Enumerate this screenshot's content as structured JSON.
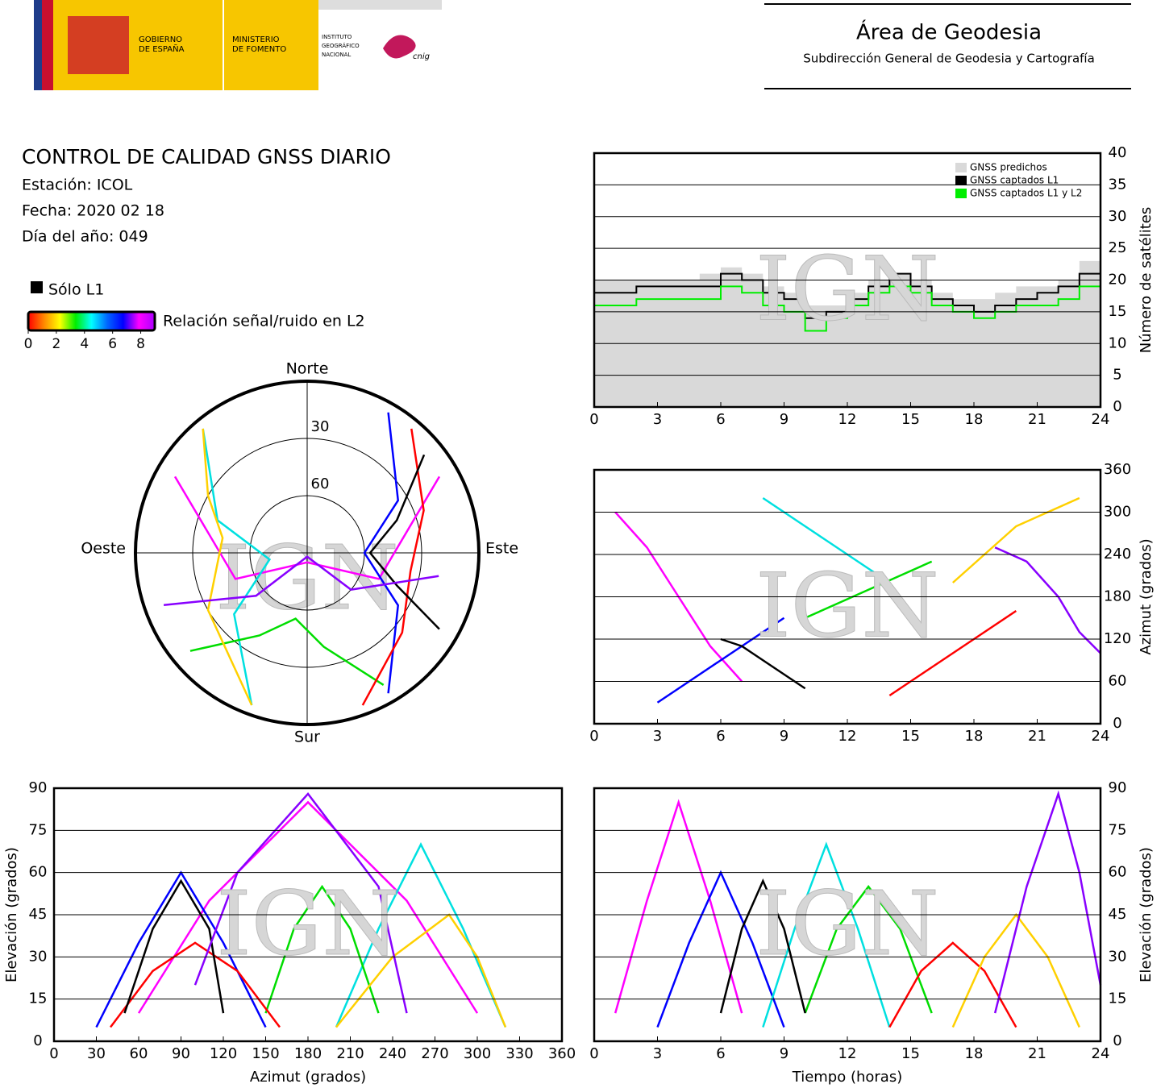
{
  "header": {
    "gobierno": [
      "GOBIERNO",
      "DE ESPAÑA"
    ],
    "ministerio": [
      "MINISTERIO",
      "DE FOMENTO"
    ],
    "instituto": [
      "INSTITUTO",
      "GEOGRÁFICO",
      "NACIONAL"
    ],
    "cnig": "cnig",
    "area": "Área de Geodesia",
    "subdireccion": "Subdirección General de Geodesia y Cartografía"
  },
  "info": {
    "title": "CONTROL DE CALIDAD GNSS DIARIO",
    "station": "Estación: ICOL",
    "date": "Fecha: 2020 02 18",
    "doy": "Día del año: 049"
  },
  "legend": {
    "solo": "Sólo L1",
    "solo_color": "#000000",
    "snr_label": "Relación señal/ruido en L2",
    "colorbar_lim": [
      0,
      9
    ],
    "colorbar_ticks": [
      0,
      2,
      4,
      6,
      8
    ],
    "colors": [
      "#ff0000",
      "#ff8800",
      "#ffff00",
      "#00ee00",
      "#00ffff",
      "#0066ff",
      "#0000ff",
      "#ff00ff",
      "#aa00ff"
    ]
  },
  "watermark": "IGN",
  "chart_data": [
    {
      "type": "step",
      "xlim": [
        0,
        24
      ],
      "xticks": [
        0,
        3,
        6,
        9,
        12,
        15,
        18,
        21,
        24
      ],
      "ylim": [
        0,
        40
      ],
      "yticks": [
        0,
        5,
        10,
        15,
        20,
        25,
        30,
        35,
        40
      ],
      "grid": true,
      "yaxis_side": "right",
      "ylabel": "Número de satélites",
      "legend": "upper right",
      "x": [
        0,
        1,
        2,
        3,
        4,
        5,
        6,
        7,
        8,
        9,
        10,
        11,
        12,
        13,
        14,
        15,
        16,
        17,
        18,
        19,
        20,
        21,
        22,
        23,
        24
      ],
      "series": [
        {
          "name": "GNSS predichos",
          "color": "#d9d9d9",
          "fill": true,
          "values": [
            20,
            20,
            20,
            20,
            20,
            21,
            22,
            21,
            19,
            18,
            16,
            16,
            18,
            20,
            21,
            20,
            18,
            17,
            17,
            18,
            19,
            19,
            20,
            23,
            20
          ]
        },
        {
          "name": "GNSS captados L1",
          "color": "#000000",
          "fill": false,
          "values": [
            18,
            18,
            19,
            19,
            19,
            19,
            21,
            20,
            18,
            17,
            14,
            15,
            17,
            19,
            21,
            19,
            17,
            16,
            15,
            16,
            17,
            18,
            19,
            21,
            19
          ]
        },
        {
          "name": "GNSS captados L1 y L2",
          "color": "#00ee00",
          "fill": false,
          "values": [
            16,
            16,
            17,
            17,
            17,
            17,
            19,
            18,
            16,
            15,
            12,
            14,
            16,
            18,
            19,
            18,
            16,
            15,
            14,
            15,
            16,
            16,
            17,
            19,
            17
          ]
        }
      ]
    },
    {
      "type": "polar",
      "directions": [
        "Norte",
        "Este",
        "Sur",
        "Oeste"
      ],
      "rlim": [
        0,
        90
      ],
      "rticks": [
        30,
        60
      ],
      "series": [
        {
          "color": "#ff00ff",
          "x": [
            300,
            250,
            180,
            110,
            60
          ],
          "values": [
            10,
            50,
            85,
            50,
            10
          ]
        },
        {
          "color": "#0000ff",
          "x": [
            30,
            60,
            90,
            120,
            150
          ],
          "values": [
            5,
            35,
            60,
            35,
            5
          ]
        },
        {
          "color": "#00e0e0",
          "x": [
            320,
            290,
            260,
            230,
            200
          ],
          "values": [
            5,
            40,
            70,
            40,
            5
          ]
        },
        {
          "color": "#00dd00",
          "x": [
            150,
            170,
            190,
            210,
            230
          ],
          "values": [
            10,
            40,
            55,
            40,
            10
          ]
        },
        {
          "color": "#ff0000",
          "x": [
            40,
            70,
            100,
            130,
            160
          ],
          "values": [
            5,
            25,
            35,
            25,
            5
          ]
        },
        {
          "color": "#000000",
          "x": [
            120,
            110,
            90,
            70,
            50
          ],
          "values": [
            10,
            40,
            57,
            40,
            10
          ]
        },
        {
          "color": "#ffd000",
          "x": [
            200,
            240,
            280,
            300,
            320
          ],
          "values": [
            5,
            30,
            45,
            30,
            5
          ]
        },
        {
          "color": "#8800ff",
          "x": [
            250,
            230,
            180,
            130,
            100
          ],
          "values": [
            10,
            55,
            88,
            60,
            20
          ]
        }
      ]
    },
    {
      "type": "line",
      "xlim": [
        0,
        24
      ],
      "xticks": [
        0,
        3,
        6,
        9,
        12,
        15,
        18,
        21,
        24
      ],
      "ylim": [
        0,
        360
      ],
      "yticks": [
        0,
        60,
        120,
        180,
        240,
        300,
        360
      ],
      "grid": true,
      "yaxis_side": "right",
      "ylabel": "Azimut (grados)",
      "series": [
        {
          "color": "#ff00ff",
          "x": [
            1,
            2.5,
            4,
            5.5,
            7
          ],
          "values": [
            300,
            250,
            180,
            110,
            60
          ]
        },
        {
          "color": "#0000ff",
          "x": [
            3,
            4.5,
            6,
            7.5,
            9
          ],
          "values": [
            30,
            60,
            90,
            120,
            150
          ]
        },
        {
          "color": "#00e0e0",
          "x": [
            8,
            9.5,
            11,
            12.5,
            14
          ],
          "values": [
            320,
            290,
            260,
            230,
            200
          ]
        },
        {
          "color": "#00dd00",
          "x": [
            10,
            11.5,
            13,
            14.5,
            16
          ],
          "values": [
            150,
            170,
            190,
            210,
            230
          ]
        },
        {
          "color": "#ff0000",
          "x": [
            14,
            15.5,
            17,
            18.5,
            20
          ],
          "values": [
            40,
            70,
            100,
            130,
            160
          ]
        },
        {
          "color": "#000000",
          "x": [
            6,
            7,
            8,
            9,
            10
          ],
          "values": [
            120,
            110,
            90,
            70,
            50
          ]
        },
        {
          "color": "#ffd000",
          "x": [
            17,
            18.5,
            20,
            21.5,
            23
          ],
          "values": [
            200,
            240,
            280,
            300,
            320
          ]
        },
        {
          "color": "#8800ff",
          "x": [
            19,
            20.5,
            22,
            23,
            24
          ],
          "values": [
            250,
            230,
            180,
            130,
            100
          ]
        }
      ]
    },
    {
      "type": "line",
      "xlim": [
        0,
        360
      ],
      "xticks": [
        0,
        30,
        60,
        90,
        120,
        150,
        180,
        210,
        240,
        270,
        300,
        330,
        360
      ],
      "ylim": [
        0,
        90
      ],
      "yticks": [
        0,
        15,
        30,
        45,
        60,
        75,
        90
      ],
      "grid": true,
      "yaxis_side": "left",
      "xlabel": "Azimut (grados)",
      "ylabel": "Elevación (grados)",
      "series": [
        {
          "color": "#ff00ff",
          "x": [
            300,
            250,
            180,
            110,
            60
          ],
          "values": [
            10,
            50,
            85,
            50,
            10
          ]
        },
        {
          "color": "#0000ff",
          "x": [
            30,
            60,
            90,
            120,
            150
          ],
          "values": [
            5,
            35,
            60,
            35,
            5
          ]
        },
        {
          "color": "#00e0e0",
          "x": [
            320,
            290,
            260,
            230,
            200
          ],
          "values": [
            5,
            40,
            70,
            40,
            5
          ]
        },
        {
          "color": "#00dd00",
          "x": [
            150,
            170,
            190,
            210,
            230
          ],
          "values": [
            10,
            40,
            55,
            40,
            10
          ]
        },
        {
          "color": "#ff0000",
          "x": [
            40,
            70,
            100,
            130,
            160
          ],
          "values": [
            5,
            25,
            35,
            25,
            5
          ]
        },
        {
          "color": "#000000",
          "x": [
            120,
            110,
            90,
            70,
            50
          ],
          "values": [
            10,
            40,
            57,
            40,
            10
          ]
        },
        {
          "color": "#ffd000",
          "x": [
            200,
            240,
            280,
            300,
            320
          ],
          "values": [
            5,
            30,
            45,
            30,
            5
          ]
        },
        {
          "color": "#8800ff",
          "x": [
            250,
            230,
            180,
            130,
            100
          ],
          "values": [
            10,
            55,
            88,
            60,
            20
          ]
        }
      ]
    },
    {
      "type": "line",
      "xlim": [
        0,
        24
      ],
      "xticks": [
        0,
        3,
        6,
        9,
        12,
        15,
        18,
        21,
        24
      ],
      "ylim": [
        0,
        90
      ],
      "yticks": [
        0,
        15,
        30,
        45,
        60,
        75,
        90
      ],
      "grid": true,
      "yaxis_side": "right",
      "xlabel": "Tiempo (horas)",
      "ylabel": "Elevación (grados)",
      "series": [
        {
          "color": "#ff00ff",
          "x": [
            1,
            2.5,
            4,
            5.5,
            7
          ],
          "values": [
            10,
            50,
            85,
            50,
            10
          ]
        },
        {
          "color": "#0000ff",
          "x": [
            3,
            4.5,
            6,
            7.5,
            9
          ],
          "values": [
            5,
            35,
            60,
            35,
            5
          ]
        },
        {
          "color": "#00e0e0",
          "x": [
            8,
            9.5,
            11,
            12.5,
            14
          ],
          "values": [
            5,
            40,
            70,
            40,
            5
          ]
        },
        {
          "color": "#00dd00",
          "x": [
            10,
            11.5,
            13,
            14.5,
            16
          ],
          "values": [
            10,
            40,
            55,
            40,
            10
          ]
        },
        {
          "color": "#ff0000",
          "x": [
            14,
            15.5,
            17,
            18.5,
            20
          ],
          "values": [
            5,
            25,
            35,
            25,
            5
          ]
        },
        {
          "color": "#000000",
          "x": [
            6,
            7,
            8,
            9,
            10
          ],
          "values": [
            10,
            40,
            57,
            40,
            10
          ]
        },
        {
          "color": "#ffd000",
          "x": [
            17,
            18.5,
            20,
            21.5,
            23
          ],
          "values": [
            5,
            30,
            45,
            30,
            5
          ]
        },
        {
          "color": "#8800ff",
          "x": [
            19,
            20.5,
            22,
            23,
            24
          ],
          "values": [
            10,
            55,
            88,
            60,
            20
          ]
        }
      ]
    }
  ]
}
